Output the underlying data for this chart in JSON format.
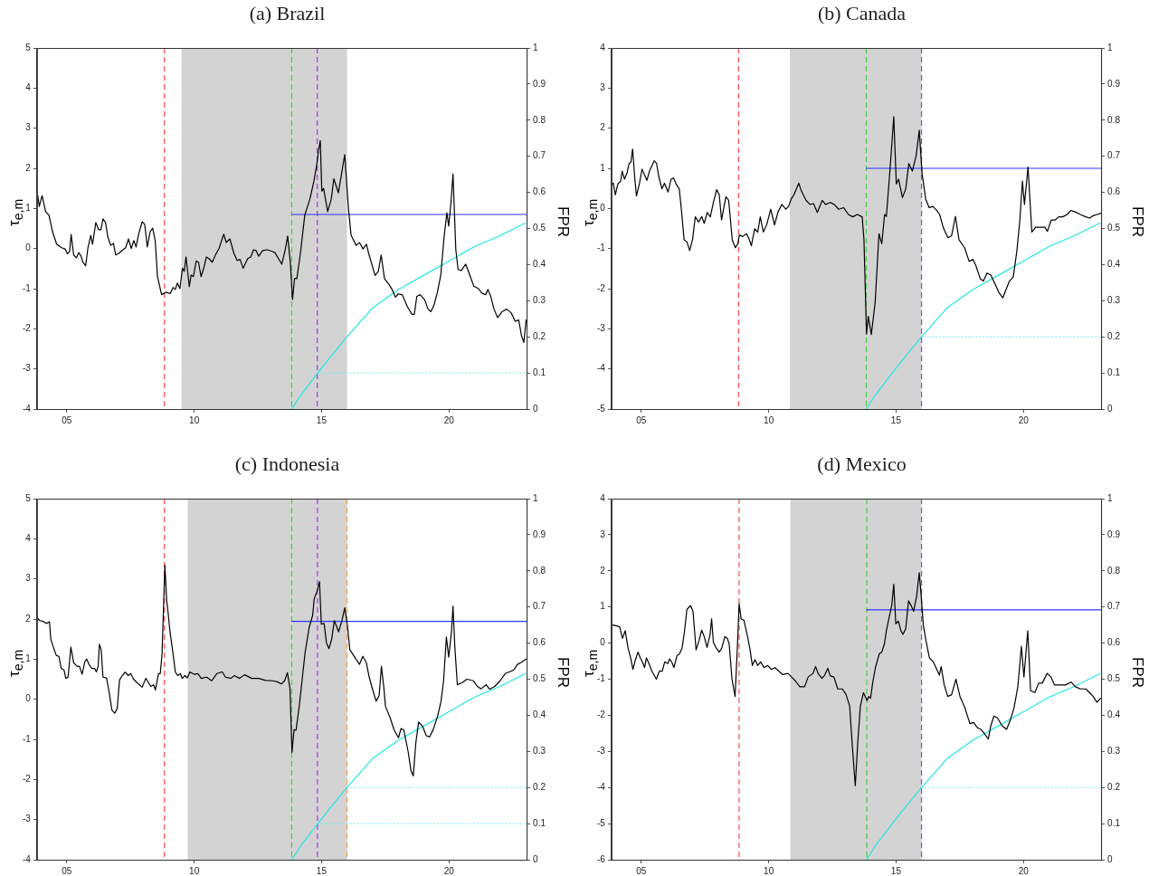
{
  "chart_data": [
    {
      "type": "line",
      "title": "(a) Brazil",
      "ylabel": "τ$_{e,m}$",
      "y2label": "FPR",
      "marker": "none",
      "legend": false,
      "xlim": [
        3.83,
        23.05
      ],
      "xticks": [
        {
          "value": 5,
          "label": "05"
        },
        {
          "value": 10,
          "label": "10"
        },
        {
          "value": 15,
          "label": "15"
        },
        {
          "value": 20,
          "label": "20"
        }
      ],
      "ylim": [
        -4,
        5
      ],
      "yticks": [
        -4,
        -3,
        -2,
        -1,
        0,
        1,
        2,
        3,
        4,
        5
      ],
      "y2lim": [
        0,
        1
      ],
      "y2ticks": [
        0,
        0.1,
        0.2,
        0.3,
        0.4,
        0.5,
        0.6,
        0.7,
        0.8,
        0.9,
        1
      ],
      "bands": [
        {
          "axis": "x",
          "from": 9.5,
          "to": 16.0,
          "color": "#d3d3d3"
        }
      ],
      "ref_lines": [
        {
          "axis": "x",
          "value": 8.83,
          "color": "#ff4d4d",
          "line_style": "dashed"
        },
        {
          "axis": "x",
          "value": 13.83,
          "color": "#44d444",
          "line_style": "dashed"
        },
        {
          "axis": "x",
          "value": 14.83,
          "color": "#9b3de6",
          "line_style": "dashed"
        }
      ],
      "series": [
        {
          "color": "#000000",
          "x": [
            3.86,
            3.92,
            4.03,
            4.17,
            4.3,
            4.44,
            4.6,
            4.8,
            4.93,
            5.03,
            5.11,
            5.17,
            5.27,
            5.38,
            5.47,
            5.56,
            5.63,
            5.74,
            5.83,
            5.94,
            6.01,
            6.14,
            6.25,
            6.34,
            6.42,
            6.52,
            6.61,
            6.72,
            6.83,
            6.92,
            7.04,
            7.18,
            7.31,
            7.42,
            7.53,
            7.63,
            7.72,
            7.82,
            7.96,
            8.06,
            8.16,
            8.27,
            8.37,
            8.47,
            8.56,
            8.72,
            8.9,
            9.06,
            9.17,
            9.26,
            9.34,
            9.44,
            9.54,
            9.61,
            9.68,
            9.81,
            9.88,
            9.97,
            10.08,
            10.17,
            10.27,
            10.38,
            10.48,
            10.58,
            10.71,
            10.85,
            10.98,
            11.16,
            11.26,
            11.4,
            11.56,
            11.69,
            11.8,
            11.92,
            12.1,
            12.22,
            12.33,
            12.43,
            12.53,
            12.69,
            12.86,
            13.06,
            13.17,
            13.31,
            13.44,
            13.58,
            13.67,
            13.78,
            13.86,
            13.94,
            14.03,
            14.17,
            14.34,
            14.54,
            14.7,
            14.81,
            14.88,
            14.95,
            15.01,
            15.08,
            15.24,
            15.38,
            15.48,
            15.66,
            15.91,
            16.06,
            16.16,
            16.36,
            16.49,
            16.63,
            16.76,
            16.85,
            17.1,
            17.23,
            17.34,
            17.47,
            17.63,
            17.77,
            17.9,
            18.01,
            18.17,
            18.37,
            18.55,
            18.64,
            18.74,
            18.87,
            19.05,
            19.18,
            19.29,
            19.41,
            19.54,
            19.68,
            19.81,
            19.92,
            19.99,
            20.08,
            20.16,
            20.27,
            20.36,
            20.48,
            20.66,
            20.79,
            20.97,
            21.16,
            21.29,
            21.44,
            21.53,
            21.64,
            21.77,
            21.91,
            22.09,
            22.27,
            22.44,
            22.6,
            22.74,
            22.85,
            22.94,
            23.03
          ],
          "values": [
            1.32,
            1.05,
            1.32,
            0.92,
            0.83,
            0.42,
            0.11,
            0.02,
            -0.01,
            -0.13,
            -0.07,
            0.35,
            -0.16,
            -0.23,
            -0.1,
            -0.19,
            -0.34,
            -0.43,
            0.02,
            0.33,
            0.11,
            0.65,
            0.47,
            0.47,
            0.74,
            0.65,
            0.29,
            0.08,
            0.13,
            -0.16,
            -0.12,
            -0.04,
            0.02,
            0.24,
            0.0,
            0.2,
            0.04,
            0.36,
            0.67,
            0.6,
            0.04,
            0.42,
            0.51,
            0.2,
            -0.7,
            -1.15,
            -1.09,
            -1.12,
            -0.97,
            -1.02,
            -0.86,
            -1.0,
            -0.49,
            -0.57,
            -0.21,
            -0.95,
            -0.66,
            -0.7,
            -0.31,
            -0.34,
            -0.7,
            -0.48,
            -0.21,
            -0.25,
            -0.34,
            -0.14,
            0.01,
            0.36,
            0.15,
            0.24,
            -0.12,
            -0.3,
            -0.27,
            -0.49,
            -0.25,
            -0.21,
            -0.03,
            -0.05,
            -0.19,
            -0.05,
            -0.03,
            -0.07,
            -0.1,
            -0.25,
            -0.39,
            -0.01,
            0.31,
            -0.39,
            -1.27,
            -0.75,
            -0.75,
            -0.12,
            0.83,
            1.23,
            1.68,
            2.08,
            2.44,
            2.69,
            1.43,
            1.5,
            0.92,
            1.23,
            1.74,
            1.39,
            2.34,
            0.96,
            0.33,
            0.08,
            0.15,
            -0.01,
            0.11,
            -0.12,
            -0.67,
            -0.57,
            -0.16,
            -0.75,
            -0.88,
            -1.02,
            -1.21,
            -1.13,
            -1.15,
            -1.45,
            -1.64,
            -1.64,
            -1.19,
            -1.15,
            -1.28,
            -1.51,
            -1.57,
            -1.42,
            -1.11,
            -0.66,
            0.29,
            0.89,
            0.56,
            1.14,
            1.86,
            -0.03,
            -0.52,
            -0.55,
            -0.39,
            -0.61,
            -0.93,
            -1.0,
            -1.11,
            -1.15,
            -1.02,
            -1.19,
            -1.51,
            -1.72,
            -1.57,
            -1.51,
            -1.6,
            -1.81,
            -1.78,
            -2.18,
            -2.34,
            -1.78
          ]
        },
        {
          "color": "#3333ff",
          "x": [
            13.83,
            23.05
          ],
          "values": [
            0.85,
            0.85
          ]
        },
        {
          "color": "#22e6e6",
          "axis": "y2",
          "x": [
            13.83,
            14.2,
            14.85,
            15.3,
            16,
            17,
            18,
            19,
            20,
            21,
            22,
            23
          ],
          "values": [
            0,
            0.04,
            0.1,
            0.14,
            0.2,
            0.28,
            0.33,
            0.37,
            0.41,
            0.45,
            0.48,
            0.515
          ]
        },
        {
          "color": "#7fe9ef",
          "axis": "y2",
          "line_style": "dotted",
          "x": [
            14.83,
            23.05
          ],
          "values": [
            0.1,
            0.1
          ]
        }
      ]
    },
    {
      "type": "line",
      "title": "(b) Canada",
      "ylabel": "τ$_{e,m}$",
      "y2label": "FPR",
      "marker": "none",
      "legend": false,
      "xlim": [
        3.83,
        23.05
      ],
      "xticks": [
        {
          "value": 5,
          "label": "05"
        },
        {
          "value": 10,
          "label": "10"
        },
        {
          "value": 15,
          "label": "15"
        },
        {
          "value": 20,
          "label": "20"
        }
      ],
      "ylim": [
        -5,
        4
      ],
      "yticks": [
        -5,
        -4,
        -3,
        -2,
        -1,
        0,
        1,
        2,
        3,
        4
      ],
      "y2lim": [
        0,
        1
      ],
      "y2ticks": [
        0,
        0.1,
        0.2,
        0.3,
        0.4,
        0.5,
        0.6,
        0.7,
        0.8,
        0.9,
        1
      ],
      "bands": [
        {
          "axis": "x",
          "from": 10.83,
          "to": 16.0,
          "color": "#d3d3d3"
        }
      ],
      "ref_lines": [
        {
          "axis": "x",
          "value": 8.82,
          "color": "#ff4d4d",
          "line_style": "dashed"
        },
        {
          "axis": "x",
          "value": 13.83,
          "color": "#44d444",
          "line_style": "dashed"
        },
        {
          "axis": "x",
          "value": 16.0,
          "color": "#9b3de6",
          "line_style": "dashed"
        }
      ],
      "series": [
        {
          "color": "#000000",
          "x": [
            3.83,
            3.9,
            3.98,
            4.08,
            4.19,
            4.25,
            4.34,
            4.44,
            4.52,
            4.59,
            4.66,
            4.74,
            4.81,
            4.93,
            5.03,
            5.22,
            5.32,
            5.42,
            5.51,
            5.6,
            5.69,
            5.81,
            5.91,
            6.05,
            6.17,
            6.27,
            6.38,
            6.49,
            6.57,
            6.68,
            6.79,
            6.9,
            7.01,
            7.12,
            7.25,
            7.37,
            7.47,
            7.59,
            7.71,
            7.83,
            7.96,
            8.06,
            8.15,
            8.32,
            8.43,
            8.57,
            8.69,
            8.79,
            8.85,
            8.98,
            9.13,
            9.23,
            9.32,
            9.45,
            9.57,
            9.67,
            9.79,
            9.93,
            10.08,
            10.23,
            10.37,
            10.52,
            10.67,
            10.78,
            10.89,
            10.99,
            11.18,
            11.28,
            11.47,
            11.62,
            11.76,
            11.91,
            12.1,
            12.23,
            12.42,
            12.57,
            12.75,
            12.94,
            13.13,
            13.3,
            13.48,
            13.67,
            13.74,
            13.84,
            13.91,
            14.03,
            14.18,
            14.33,
            14.44,
            14.55,
            14.62,
            14.77,
            14.91,
            15.01,
            15.1,
            15.25,
            15.38,
            15.5,
            15.64,
            15.79,
            15.91,
            16.02,
            16.16,
            16.3,
            16.45,
            16.6,
            16.71,
            16.86,
            17.04,
            17.18,
            17.33,
            17.47,
            17.69,
            17.87,
            18.02,
            18.13,
            18.31,
            18.43,
            18.57,
            18.72,
            18.87,
            19.04,
            19.19,
            19.3,
            19.45,
            19.6,
            19.74,
            19.86,
            19.96,
            20.04,
            20.18,
            20.33,
            20.48,
            20.65,
            20.84,
            20.94,
            21.09,
            21.24,
            21.38,
            21.54,
            21.72,
            21.86,
            22.01,
            22.23,
            22.45,
            22.6,
            22.74,
            22.89,
            23.05
          ],
          "values": [
            0.59,
            0.63,
            0.34,
            0.61,
            0.68,
            0.93,
            0.73,
            0.88,
            1.12,
            1.15,
            1.48,
            0.78,
            0.31,
            0.63,
            0.98,
            0.7,
            0.93,
            1.07,
            1.19,
            1.12,
            0.78,
            0.49,
            0.63,
            0.41,
            0.73,
            0.76,
            0.59,
            0.49,
            0.0,
            -0.78,
            -0.83,
            -1.05,
            -0.78,
            -0.21,
            -0.34,
            -0.2,
            -0.37,
            -0.1,
            -0.21,
            0.15,
            0.47,
            0.34,
            -0.29,
            0.29,
            0.2,
            -0.78,
            -0.98,
            -0.88,
            -0.66,
            -0.7,
            -0.63,
            -0.76,
            -0.93,
            -0.51,
            -0.59,
            -0.21,
            -0.59,
            -0.39,
            -0.02,
            -0.41,
            -0.08,
            0.1,
            -0.02,
            0.05,
            0.24,
            0.34,
            0.63,
            0.44,
            0.2,
            0.1,
            0.12,
            -0.1,
            0.2,
            0.1,
            0.15,
            0.1,
            -0.02,
            0.02,
            -0.15,
            -0.21,
            -0.15,
            -0.21,
            -0.78,
            -3.13,
            -2.69,
            -3.14,
            -2.34,
            -0.63,
            -0.88,
            -0.15,
            -0.2,
            1.03,
            2.29,
            0.61,
            0.73,
            0.27,
            0.49,
            1.12,
            0.93,
            1.32,
            1.95,
            0.88,
            0.24,
            0.02,
            0.05,
            -0.05,
            -0.15,
            -0.49,
            -0.73,
            -0.68,
            -0.2,
            -0.78,
            -0.98,
            -1.32,
            -1.27,
            -1.42,
            -1.76,
            -1.81,
            -1.61,
            -1.66,
            -1.86,
            -2.1,
            -2.23,
            -2.05,
            -1.81,
            -1.71,
            -1.07,
            -0.29,
            0.68,
            0.1,
            1.03,
            -0.59,
            -0.47,
            -0.47,
            -0.47,
            -0.57,
            -0.29,
            -0.29,
            -0.21,
            -0.21,
            -0.15,
            -0.05,
            -0.08,
            -0.15,
            -0.21,
            -0.24,
            -0.18,
            -0.15,
            -0.12
          ]
        },
        {
          "color": "#3333ff",
          "x": [
            13.83,
            23.05
          ],
          "values": [
            1.0,
            1.0
          ]
        },
        {
          "color": "#22e6e6",
          "axis": "y2",
          "x": [
            13.83,
            14.2,
            14.85,
            15.3,
            16,
            17,
            18,
            19,
            20,
            21,
            22,
            23
          ],
          "values": [
            0,
            0.04,
            0.1,
            0.14,
            0.2,
            0.28,
            0.33,
            0.37,
            0.41,
            0.45,
            0.48,
            0.515
          ]
        },
        {
          "color": "#7fe9ef",
          "axis": "y2",
          "line_style": "dotted",
          "x": [
            16.0,
            23.05
          ],
          "values": [
            0.2,
            0.2
          ]
        }
      ]
    },
    {
      "type": "line",
      "title": "(c) Indonesia",
      "ylabel": "τ$_{e,m}$",
      "y2label": "FPR",
      "marker": "none",
      "legend": false,
      "xlim": [
        3.83,
        23.05
      ],
      "xticks": [
        {
          "value": 5,
          "label": "05"
        },
        {
          "value": 10,
          "label": "10"
        },
        {
          "value": 15,
          "label": "15"
        },
        {
          "value": 20,
          "label": "20"
        }
      ],
      "ylim": [
        -4,
        5
      ],
      "yticks": [
        -4,
        -3,
        -2,
        -1,
        0,
        1,
        2,
        3,
        4,
        5
      ],
      "y2lim": [
        0,
        1
      ],
      "y2ticks": [
        0,
        0.1,
        0.2,
        0.3,
        0.4,
        0.5,
        0.6,
        0.7,
        0.8,
        0.9,
        1
      ],
      "bands": [
        {
          "axis": "x",
          "from": 9.75,
          "to": 16.0,
          "color": "#d3d3d3"
        }
      ],
      "ref_lines": [
        {
          "axis": "x",
          "value": 8.83,
          "color": "#ff4d4d",
          "line_style": "dashed"
        },
        {
          "axis": "x",
          "value": 13.83,
          "color": "#44d444",
          "line_style": "dashed"
        },
        {
          "axis": "x",
          "value": 14.84,
          "color": "#9b3de6",
          "line_style": "dashed"
        },
        {
          "axis": "x",
          "value": 16.0,
          "color": "#ffa040",
          "line_style": "dashed"
        }
      ],
      "series": [
        {
          "color": "#000000",
          "x": [
            3.83,
            3.94,
            4.07,
            4.21,
            4.32,
            4.37,
            4.48,
            4.59,
            4.69,
            4.78,
            4.89,
            4.96,
            5.05,
            5.16,
            5.27,
            5.41,
            5.5,
            5.6,
            5.71,
            5.78,
            5.87,
            5.98,
            6.09,
            6.16,
            6.23,
            6.28,
            6.35,
            6.42,
            6.56,
            6.66,
            6.77,
            6.88,
            6.98,
            7.07,
            7.18,
            7.29,
            7.41,
            7.51,
            7.62,
            7.76,
            7.96,
            8.1,
            8.21,
            8.3,
            8.41,
            8.48,
            8.6,
            8.67,
            8.74,
            8.85,
            8.92,
            8.98,
            9.05,
            9.15,
            9.26,
            9.35,
            9.46,
            9.53,
            9.64,
            9.73,
            9.83,
            10.01,
            10.14,
            10.28,
            10.48,
            10.69,
            10.89,
            11.1,
            11.23,
            11.44,
            11.58,
            11.78,
            11.98,
            12.26,
            12.53,
            12.8,
            13.08,
            13.28,
            13.42,
            13.55,
            13.66,
            13.76,
            13.84,
            13.92,
            14.0,
            14.13,
            14.24,
            14.35,
            14.51,
            14.65,
            14.71,
            14.82,
            14.92,
            14.99,
            15.1,
            15.19,
            15.29,
            15.4,
            15.5,
            15.67,
            15.8,
            15.91,
            16.01,
            16.11,
            16.21,
            16.35,
            16.49,
            16.62,
            16.76,
            16.87,
            17.01,
            17.14,
            17.26,
            17.35,
            17.44,
            17.51,
            17.69,
            17.85,
            18.02,
            18.12,
            18.23,
            18.4,
            18.51,
            18.6,
            18.7,
            18.81,
            18.97,
            19.11,
            19.24,
            19.38,
            19.56,
            19.69,
            19.79,
            19.9,
            19.99,
            20.1,
            20.16,
            20.23,
            20.33,
            20.51,
            20.71,
            20.96,
            21.12,
            21.26,
            21.46,
            21.6,
            21.8,
            22.01,
            22.21,
            22.37,
            22.55,
            22.69,
            22.82,
            23.03
          ],
          "values": [
            2.03,
            1.96,
            1.94,
            1.89,
            1.93,
            1.5,
            1.28,
            1.09,
            1.07,
            0.77,
            0.73,
            0.52,
            0.55,
            1.3,
            0.91,
            0.82,
            0.82,
            0.62,
            0.94,
            1.0,
            0.87,
            0.77,
            0.77,
            0.68,
            0.82,
            1.37,
            1.23,
            0.55,
            0.53,
            0.18,
            -0.27,
            -0.35,
            -0.23,
            0.48,
            0.59,
            0.68,
            0.59,
            0.64,
            0.5,
            0.41,
            0.3,
            0.52,
            0.41,
            0.32,
            0.36,
            0.23,
            0.64,
            0.64,
            1.14,
            3.34,
            2.46,
            2.14,
            1.68,
            1.23,
            0.68,
            0.59,
            0.64,
            0.52,
            0.59,
            0.53,
            0.68,
            0.62,
            0.64,
            0.52,
            0.55,
            0.46,
            0.64,
            0.68,
            0.55,
            0.52,
            0.59,
            0.52,
            0.61,
            0.52,
            0.52,
            0.47,
            0.46,
            0.43,
            0.38,
            0.46,
            0.66,
            0.27,
            -1.32,
            -0.76,
            -0.77,
            -0.14,
            0.5,
            1.14,
            1.78,
            2.09,
            2.5,
            2.69,
            2.93,
            1.87,
            1.89,
            1.41,
            1.26,
            1.5,
            1.96,
            1.68,
            1.96,
            2.28,
            1.87,
            1.23,
            1.14,
            1.0,
            0.87,
            1.07,
            0.91,
            0.55,
            0.23,
            -0.05,
            0.09,
            0.82,
            0.32,
            -0.18,
            -0.46,
            -0.77,
            -0.96,
            -0.73,
            -0.77,
            -1.31,
            -1.78,
            -1.91,
            -1.09,
            -0.57,
            -0.68,
            -0.91,
            -0.94,
            -0.76,
            -0.41,
            -0.05,
            0.46,
            1.55,
            1.05,
            1.68,
            2.32,
            1.32,
            0.36,
            0.41,
            0.5,
            0.46,
            0.32,
            0.26,
            0.36,
            0.25,
            0.32,
            0.46,
            0.64,
            0.68,
            0.73,
            0.87,
            0.91,
            1.0
          ]
        },
        {
          "color": "#3333ff",
          "x": [
            13.83,
            23.05
          ],
          "values": [
            1.94,
            1.94
          ]
        },
        {
          "color": "#22e6e6",
          "axis": "y2",
          "x": [
            13.83,
            14.2,
            14.85,
            15.3,
            16,
            17,
            18,
            19,
            20,
            21,
            22,
            23
          ],
          "values": [
            0,
            0.04,
            0.1,
            0.14,
            0.2,
            0.28,
            0.33,
            0.37,
            0.41,
            0.45,
            0.48,
            0.515
          ]
        },
        {
          "color": "#7fe9ef",
          "axis": "y2",
          "line_style": "dotted",
          "x": [
            16.0,
            23.05
          ],
          "values": [
            0.2,
            0.2
          ]
        },
        {
          "color": "#7fe9ef",
          "axis": "y2",
          "line_style": "dotted",
          "x": [
            14.84,
            23.05
          ],
          "values": [
            0.1,
            0.1
          ]
        }
      ]
    },
    {
      "type": "line",
      "title": "(d) Mexico",
      "ylabel": "τ$_{e,m}$",
      "y2label": "FPR",
      "marker": "none",
      "legend": false,
      "xlim": [
        3.83,
        23.05
      ],
      "xticks": [
        {
          "value": 5,
          "label": "05"
        },
        {
          "value": 10,
          "label": "10"
        },
        {
          "value": 15,
          "label": "15"
        },
        {
          "value": 20,
          "label": "20"
        }
      ],
      "ylim": [
        -6,
        4
      ],
      "yticks": [
        -6,
        -5,
        -4,
        -3,
        -2,
        -1,
        0,
        1,
        2,
        3,
        4
      ],
      "y2lim": [
        0,
        1
      ],
      "y2ticks": [
        0,
        0.1,
        0.2,
        0.3,
        0.4,
        0.5,
        0.6,
        0.7,
        0.8,
        0.9,
        1
      ],
      "bands": [
        {
          "axis": "x",
          "from": 10.85,
          "to": 16.0,
          "color": "#d3d3d3"
        }
      ],
      "ref_lines": [
        {
          "axis": "x",
          "value": 8.84,
          "color": "#ff4d4d",
          "line_style": "dashed"
        },
        {
          "axis": "x",
          "value": 13.85,
          "color": "#44d444",
          "line_style": "dashed"
        },
        {
          "axis": "x",
          "value": 16.0,
          "color": "#9b3de6",
          "line_style": "dashed"
        }
      ],
      "series": [
        {
          "color": "#000000",
          "x": [
            3.86,
            4.0,
            4.15,
            4.26,
            4.37,
            4.48,
            4.58,
            4.67,
            4.77,
            4.87,
            4.96,
            5.06,
            5.13,
            5.2,
            5.3,
            5.42,
            5.59,
            5.71,
            5.82,
            5.92,
            6.04,
            6.11,
            6.21,
            6.28,
            6.4,
            6.5,
            6.6,
            6.69,
            6.79,
            6.93,
            7.03,
            7.15,
            7.27,
            7.37,
            7.47,
            7.58,
            7.7,
            7.76,
            7.83,
            7.94,
            8.06,
            8.16,
            8.28,
            8.38,
            8.45,
            8.56,
            8.68,
            8.77,
            8.84,
            8.92,
            9.03,
            9.17,
            9.27,
            9.36,
            9.46,
            9.57,
            9.68,
            9.82,
            9.96,
            10.11,
            10.25,
            10.4,
            10.54,
            10.76,
            10.9,
            11.05,
            11.22,
            11.41,
            11.55,
            11.74,
            11.84,
            11.94,
            12.09,
            12.2,
            12.32,
            12.42,
            12.56,
            12.71,
            12.89,
            13.04,
            13.18,
            13.28,
            13.4,
            13.5,
            13.6,
            13.72,
            13.79,
            13.86,
            13.93,
            14.0,
            14.08,
            14.19,
            14.34,
            14.44,
            14.54,
            14.62,
            14.73,
            14.83,
            14.91,
            14.99,
            15.09,
            15.19,
            15.27,
            15.38,
            15.49,
            15.59,
            15.69,
            15.81,
            15.91,
            15.98,
            16.07,
            16.17,
            16.31,
            16.46,
            16.6,
            16.7,
            16.77,
            16.89,
            17.03,
            17.18,
            17.35,
            17.51,
            17.68,
            17.9,
            18.04,
            18.19,
            18.33,
            18.48,
            18.62,
            18.72,
            18.84,
            18.98,
            19.16,
            19.34,
            19.49,
            19.63,
            19.78,
            19.92,
            20.02,
            20.17,
            20.28,
            20.45,
            20.6,
            20.74,
            20.93,
            21.08,
            21.22,
            21.44,
            21.65,
            21.87,
            22.04,
            22.23,
            22.45,
            22.59,
            22.74,
            22.88,
            23.03
          ],
          "values": [
            0.5,
            0.48,
            0.45,
            0.13,
            0.34,
            -0.14,
            -0.41,
            -0.73,
            -0.46,
            -0.25,
            -0.41,
            -0.55,
            -0.68,
            -0.41,
            -0.57,
            -0.78,
            -1.0,
            -0.78,
            -0.78,
            -0.52,
            -0.57,
            -0.44,
            -0.55,
            -0.68,
            -0.35,
            -0.3,
            -0.14,
            0.29,
            0.93,
            1.04,
            0.88,
            -0.19,
            0.08,
            0.36,
            0.18,
            -0.12,
            0.24,
            0.67,
            0.02,
            -0.14,
            -0.25,
            -0.14,
            0.18,
            0.13,
            -0.03,
            -1.0,
            -1.48,
            -0.14,
            1.09,
            0.67,
            0.63,
            0.18,
            -0.19,
            -0.62,
            -0.46,
            -0.62,
            -0.52,
            -0.68,
            -0.62,
            -0.73,
            -0.68,
            -0.78,
            -0.87,
            -0.84,
            -0.94,
            -1.05,
            -1.21,
            -1.21,
            -0.94,
            -0.84,
            -0.65,
            -0.84,
            -0.98,
            -0.89,
            -0.7,
            -0.91,
            -0.94,
            -1.27,
            -1.27,
            -1.43,
            -1.75,
            -2.82,
            -3.95,
            -2.71,
            -1.75,
            -1.37,
            -1.48,
            -1.59,
            -1.48,
            -1.53,
            -1.11,
            -0.68,
            -0.3,
            -0.25,
            -0.03,
            0.34,
            0.72,
            1.04,
            1.63,
            0.53,
            0.61,
            0.34,
            0.24,
            0.4,
            1.17,
            1.04,
            0.88,
            1.31,
            1.95,
            1.36,
            0.5,
            0.08,
            -0.41,
            -0.52,
            -0.73,
            -0.89,
            -0.65,
            -1.16,
            -1.48,
            -1.43,
            -1.0,
            -1.48,
            -1.75,
            -2.23,
            -2.2,
            -2.34,
            -2.39,
            -2.52,
            -2.66,
            -2.29,
            -2.02,
            -2.07,
            -2.29,
            -2.39,
            -2.12,
            -1.8,
            -1.21,
            -0.09,
            -0.94,
            0.34,
            -1.32,
            -1.37,
            -1.11,
            -1.11,
            -0.84,
            -0.94,
            -1.16,
            -1.16,
            -1.16,
            -1.08,
            -1.21,
            -1.27,
            -1.27,
            -1.37,
            -1.48,
            -1.64,
            -1.53
          ]
        },
        {
          "color": "#3333ff",
          "x": [
            13.85,
            23.05
          ],
          "values": [
            0.92,
            0.92
          ]
        },
        {
          "color": "#22e6e6",
          "axis": "y2",
          "x": [
            13.85,
            14.2,
            14.85,
            15.3,
            16,
            17,
            18,
            19,
            20,
            21,
            22,
            23
          ],
          "values": [
            0,
            0.04,
            0.1,
            0.14,
            0.2,
            0.28,
            0.33,
            0.37,
            0.41,
            0.45,
            0.48,
            0.515
          ]
        },
        {
          "color": "#7fe9ef",
          "axis": "y2",
          "line_style": "dotted",
          "x": [
            16.0,
            23.05
          ],
          "values": [
            0.2,
            0.2
          ]
        }
      ]
    }
  ]
}
